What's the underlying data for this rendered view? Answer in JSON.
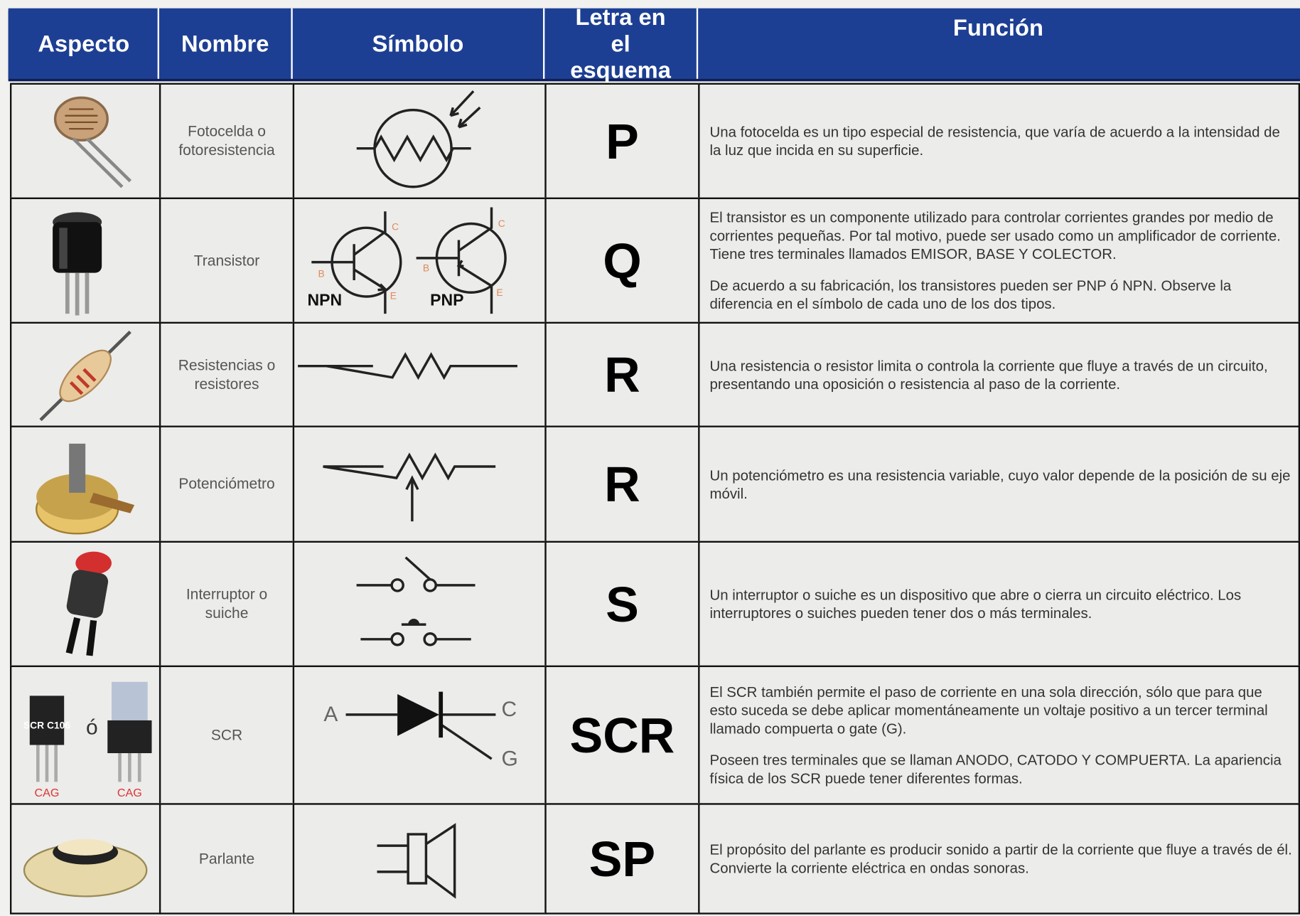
{
  "header": {
    "columns": [
      "Aspecto",
      "Nombre",
      "Símbolo",
      "Letra en el esquema",
      "Función"
    ]
  },
  "rows": [
    {
      "name": "Fotocelda o fotoresistencia",
      "letter": "P",
      "function": [
        "Una fotocelda es un tipo especial de resistencia, que varía de acuerdo a la intensidad de la luz que incida en su superficie."
      ]
    },
    {
      "name": "Transistor",
      "symbol_labels": [
        "NPN",
        "PNP",
        "B",
        "C",
        "E",
        "B",
        "C",
        "E"
      ],
      "letter": "Q",
      "function": [
        "El transistor es un componente utilizado para controlar corrientes grandes por medio de corrientes pequeñas. Por tal motivo, puede ser usado como un amplificador de corriente. Tiene tres terminales llamados EMISOR, BASE Y COLECTOR.",
        "De acuerdo a su fabricación, los transistores pueden ser PNP ó NPN. Observe la diferencia en el símbolo de cada uno de los dos tipos."
      ]
    },
    {
      "name": "Resistencias o resistores",
      "letter": "R",
      "function": [
        "Una resistencia o resistor limita o controla la corriente que fluye a través de un circuito, presentando una oposición o resistencia al paso de la corriente."
      ]
    },
    {
      "name": "Potenciómetro",
      "letter": "R",
      "function": [
        "Un potenciómetro es una resistencia variable, cuyo valor depende de la posición de su eje móvil."
      ]
    },
    {
      "name": "Interruptor o suiche",
      "letter": "S",
      "function": [
        "Un interruptor o suiche es un dispositivo que abre o cierra un circuito eléctrico. Los interruptores o suiches pueden tener dos o más terminales."
      ]
    },
    {
      "name": "SCR",
      "aspect_labels": [
        "SCR C106",
        "ó",
        "CAG",
        "CAG"
      ],
      "symbol_labels": [
        "A",
        "C",
        "G"
      ],
      "letter": "SCR",
      "function": [
        "El SCR también permite el paso de corriente en una sola dirección, sólo que para que esto suceda se debe aplicar momentáneamente un voltaje positivo a un tercer terminal llamado compuerta o gate (G).",
        "Poseen tres terminales que se llaman ANODO, CATODO Y COMPUERTA. La apariencia física de los SCR puede tener diferentes formas."
      ]
    },
    {
      "name": "Parlante",
      "letter": "SP",
      "function": [
        "El propósito del parlante es producir sonido a partir de la corriente que fluye a través de él. Convierte la corriente eléctrica en ondas sonoras."
      ]
    }
  ]
}
